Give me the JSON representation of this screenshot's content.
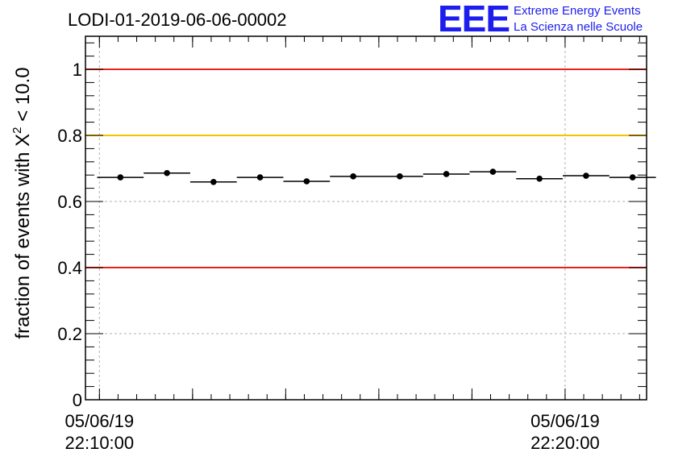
{
  "chart_data": {
    "type": "scatter",
    "title": "LODI-01-2019-06-06-00002",
    "ylabel_main": "fraction of events with ",
    "ylabel_symbol": "X",
    "ylabel_sup": "2",
    "ylabel_tail": " < 10.0",
    "xlabel": "",
    "x_unit": "minutes after 05/06/19 22:10:00",
    "xlim": [
      -0.3,
      11.75
    ],
    "ylim": [
      0,
      1.1
    ],
    "y_ticks": [
      {
        "value": 0,
        "label": "0"
      },
      {
        "value": 0.2,
        "label": "0.2"
      },
      {
        "value": 0.4,
        "label": "0.4"
      },
      {
        "value": 0.6,
        "label": "0.6"
      },
      {
        "value": 0.8,
        "label": "0.8"
      },
      {
        "value": 1,
        "label": "1"
      }
    ],
    "x_ticks": [
      {
        "value": 0,
        "date": "05/06/19",
        "time": "22:10:00"
      },
      {
        "value": 10,
        "date": "05/06/19",
        "time": "22:20:00"
      }
    ],
    "grid": true,
    "reference_lines": [
      {
        "y": 1.0,
        "color": "#e8231a"
      },
      {
        "y": 0.8,
        "color": "#f5c400"
      },
      {
        "y": 0.4,
        "color": "#e8231a"
      }
    ],
    "series": [
      {
        "x": [
          0.45,
          1.45,
          2.45,
          3.45,
          4.45,
          5.45,
          6.45,
          7.45,
          8.45,
          9.45,
          10.45,
          11.45
        ],
        "y": [
          0.673,
          0.686,
          0.659,
          0.673,
          0.661,
          0.676,
          0.676,
          0.683,
          0.69,
          0.669,
          0.678,
          0.673
        ],
        "x_err": 0.5,
        "color": "#000000"
      }
    ]
  },
  "logo": {
    "mark": "EEE",
    "line1": "Extreme Energy Events",
    "line2": "La Scienza nelle Scuole"
  }
}
